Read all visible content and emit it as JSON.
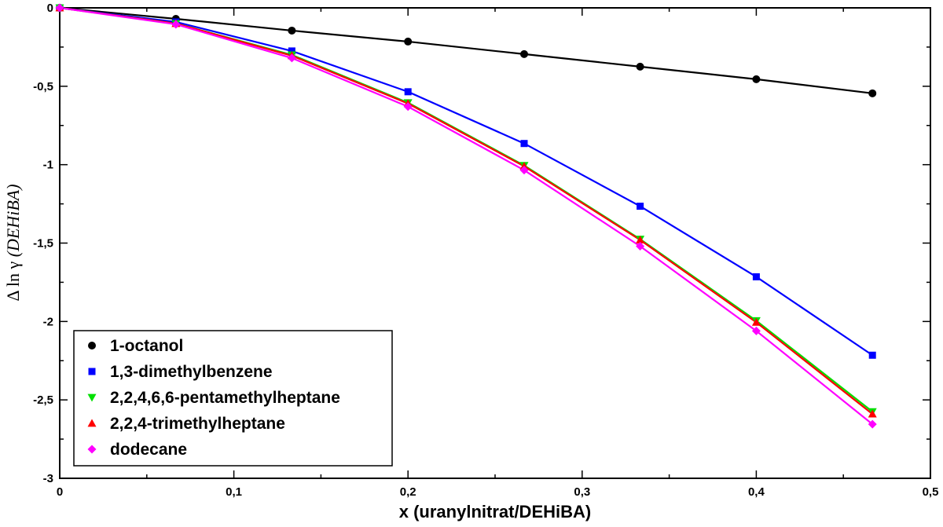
{
  "chart_data": {
    "type": "line",
    "title": "",
    "xlabel": "x (uranylnitrat/DEHiBA)",
    "ylabel_prefix": "Δ ln γ ",
    "ylabel_italic": "(DEHiBA)",
    "xlim": [
      0,
      0.5
    ],
    "ylim": [
      -3,
      0
    ],
    "xticks": [
      0,
      0.1,
      0.2,
      0.3,
      0.4,
      0.5
    ],
    "xtick_labels": [
      "0",
      "0,1",
      "0,2",
      "0,3",
      "0,4",
      "0,5"
    ],
    "yticks": [
      0,
      -0.5,
      -1,
      -1.5,
      -2,
      -2.5,
      -3
    ],
    "ytick_labels": [
      "0",
      "-0,5",
      "-1",
      "-1,5",
      "-2",
      "-2,5",
      "-3"
    ],
    "grid": false,
    "legend_position": "bottom-left",
    "x": [
      0,
      0.0667,
      0.1333,
      0.2,
      0.2667,
      0.3333,
      0.4,
      0.4667
    ],
    "series": [
      {
        "name": "1-octanol",
        "color": "#000000",
        "marker": "circle",
        "values": [
          0,
          -0.07,
          -0.145,
          -0.215,
          -0.295,
          -0.375,
          -0.455,
          -0.545
        ]
      },
      {
        "name": "1,3-dimethylbenzene",
        "color": "#0000ff",
        "marker": "square",
        "values": [
          0,
          -0.09,
          -0.275,
          -0.535,
          -0.865,
          -1.265,
          -1.715,
          -2.215
        ]
      },
      {
        "name": "2,2,4,6,6-pentamethylheptane",
        "color": "#00e000",
        "marker": "triangle-down",
        "values": [
          0,
          -0.1,
          -0.3,
          -0.605,
          -1.005,
          -1.475,
          -1.995,
          -2.575
        ]
      },
      {
        "name": "2,2,4-trimethylheptane",
        "color": "#ff0000",
        "marker": "triangle-up",
        "values": [
          0,
          -0.1,
          -0.305,
          -0.61,
          -1.01,
          -1.48,
          -2.005,
          -2.59
        ]
      },
      {
        "name": "dodecane",
        "color": "#ff00ff",
        "marker": "diamond",
        "values": [
          0,
          -0.105,
          -0.32,
          -0.63,
          -1.035,
          -1.52,
          -2.06,
          -2.655
        ]
      }
    ]
  }
}
